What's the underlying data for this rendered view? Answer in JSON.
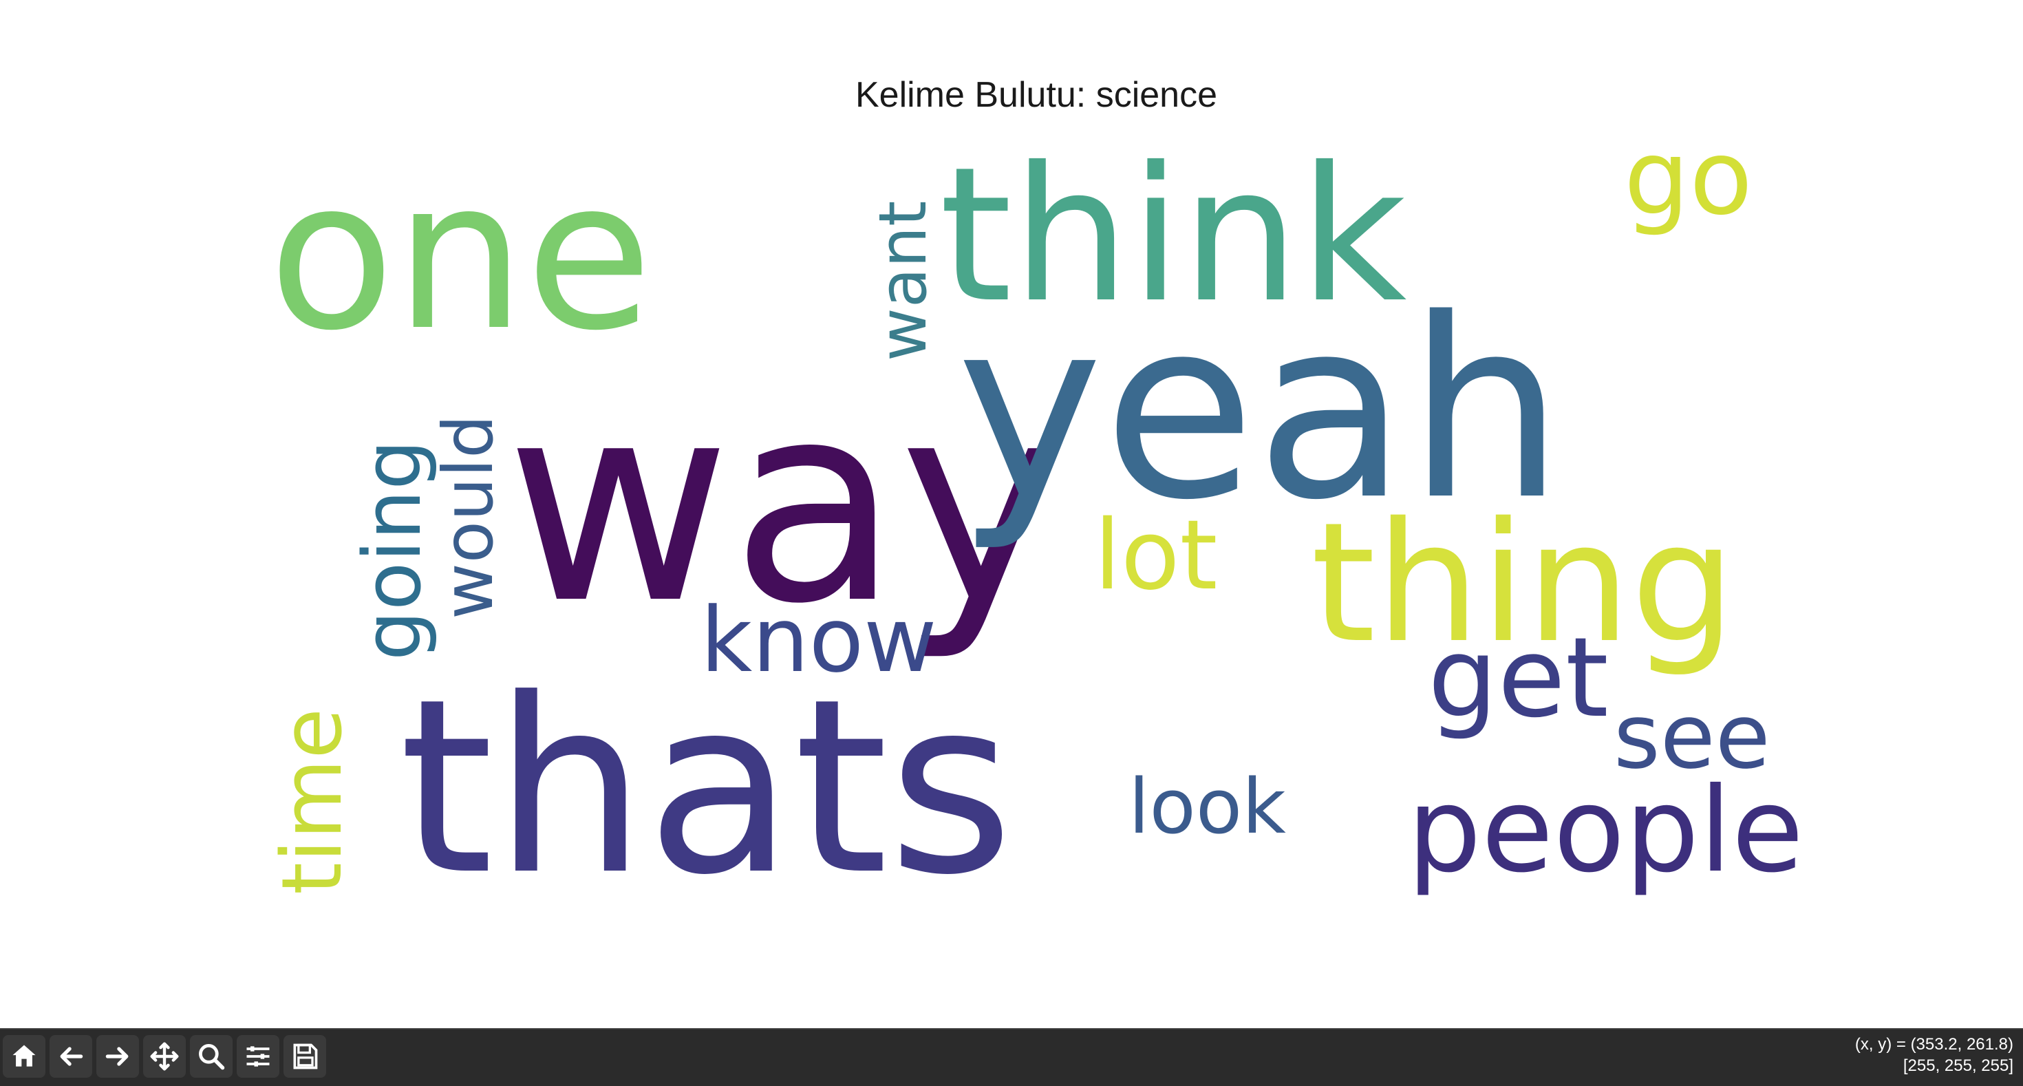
{
  "figure": {
    "title": "Kelime Bulutu: science"
  },
  "chart_data": {
    "type": "wordcloud",
    "title": "Kelime Bulutu: science",
    "colormap": "viridis",
    "background": "#ffffff",
    "words": [
      {
        "text": "way",
        "rank": 1
      },
      {
        "text": "thats",
        "rank": 2
      },
      {
        "text": "yeah",
        "rank": 3
      },
      {
        "text": "one",
        "rank": 4
      },
      {
        "text": "think",
        "rank": 5
      },
      {
        "text": "thing",
        "rank": 6
      },
      {
        "text": "people",
        "rank": 7
      },
      {
        "text": "know",
        "rank": 8
      },
      {
        "text": "get",
        "rank": 9
      },
      {
        "text": "see",
        "rank": 10
      },
      {
        "text": "time",
        "rank": 11
      },
      {
        "text": "going",
        "rank": 12
      },
      {
        "text": "go",
        "rank": 13
      },
      {
        "text": "lot",
        "rank": 14
      },
      {
        "text": "would",
        "rank": 15
      },
      {
        "text": "want",
        "rank": 16
      },
      {
        "text": "look",
        "rank": 17
      }
    ]
  },
  "toolbar": {
    "buttons": [
      {
        "name": "home-button",
        "icon": "home-icon",
        "label": "Home"
      },
      {
        "name": "back-button",
        "icon": "arrow-left-icon",
        "label": "Back"
      },
      {
        "name": "forward-button",
        "icon": "arrow-right-icon",
        "label": "Forward"
      },
      {
        "name": "pan-button",
        "icon": "move-icon",
        "label": "Pan"
      },
      {
        "name": "zoom-button",
        "icon": "zoom-icon",
        "label": "Zoom"
      },
      {
        "name": "configure-button",
        "icon": "sliders-icon",
        "label": "Configure subplots"
      },
      {
        "name": "save-button",
        "icon": "save-icon",
        "label": "Save"
      }
    ],
    "coord_line1": "(x, y) = (353.2, 261.8)",
    "coord_line2": "[255, 255, 255]"
  }
}
